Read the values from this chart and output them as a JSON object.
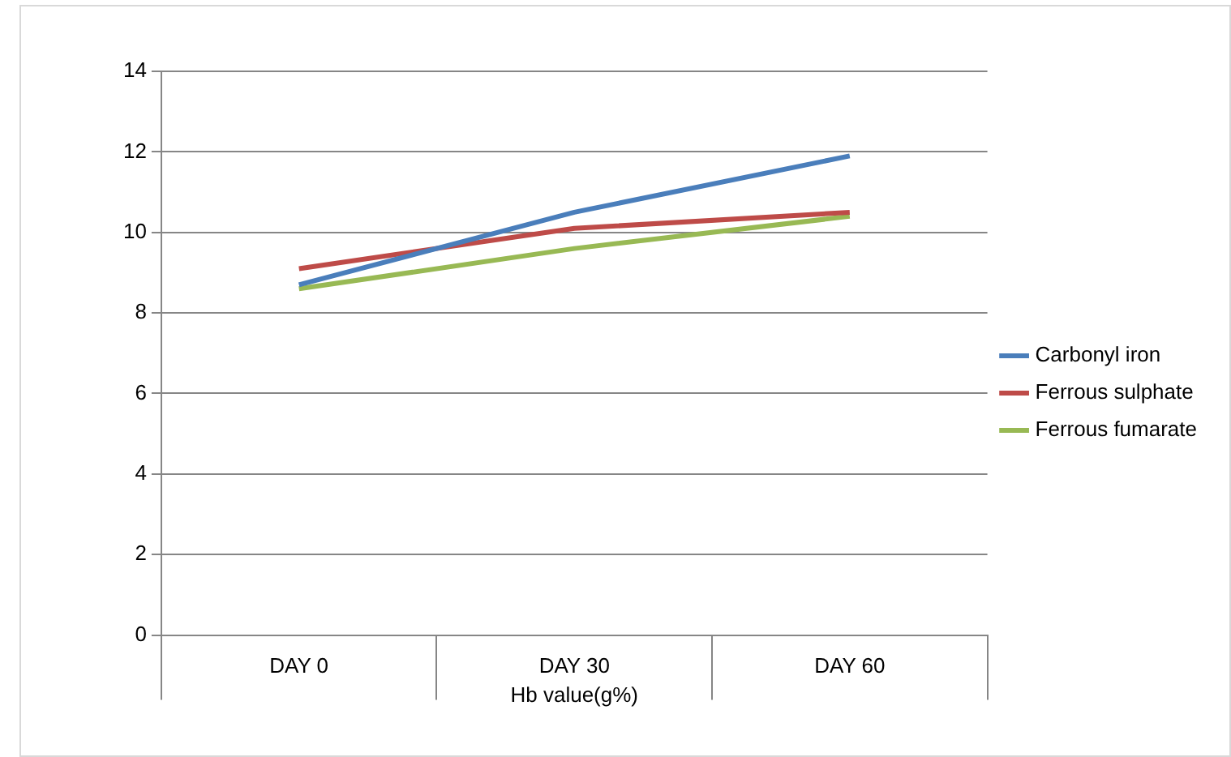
{
  "chart_data": {
    "type": "line",
    "xlabel": "Hb value(g%)",
    "categories": [
      "DAY 0",
      "DAY 30",
      "DAY 60"
    ],
    "series": [
      {
        "name": "Carbonyl iron",
        "color": "#4a7ebb",
        "values": [
          8.7,
          10.5,
          11.9
        ]
      },
      {
        "name": "Ferrous sulphate",
        "color": "#be4b48",
        "values": [
          9.1,
          10.1,
          10.5
        ]
      },
      {
        "name": "Ferrous fumarate",
        "color": "#98b954",
        "values": [
          8.6,
          9.6,
          10.4
        ]
      }
    ],
    "ylim": [
      0,
      14
    ],
    "yticks": [
      0,
      2,
      4,
      6,
      8,
      10,
      12,
      14
    ],
    "grid": "y",
    "legend": "right",
    "marker": "none"
  }
}
